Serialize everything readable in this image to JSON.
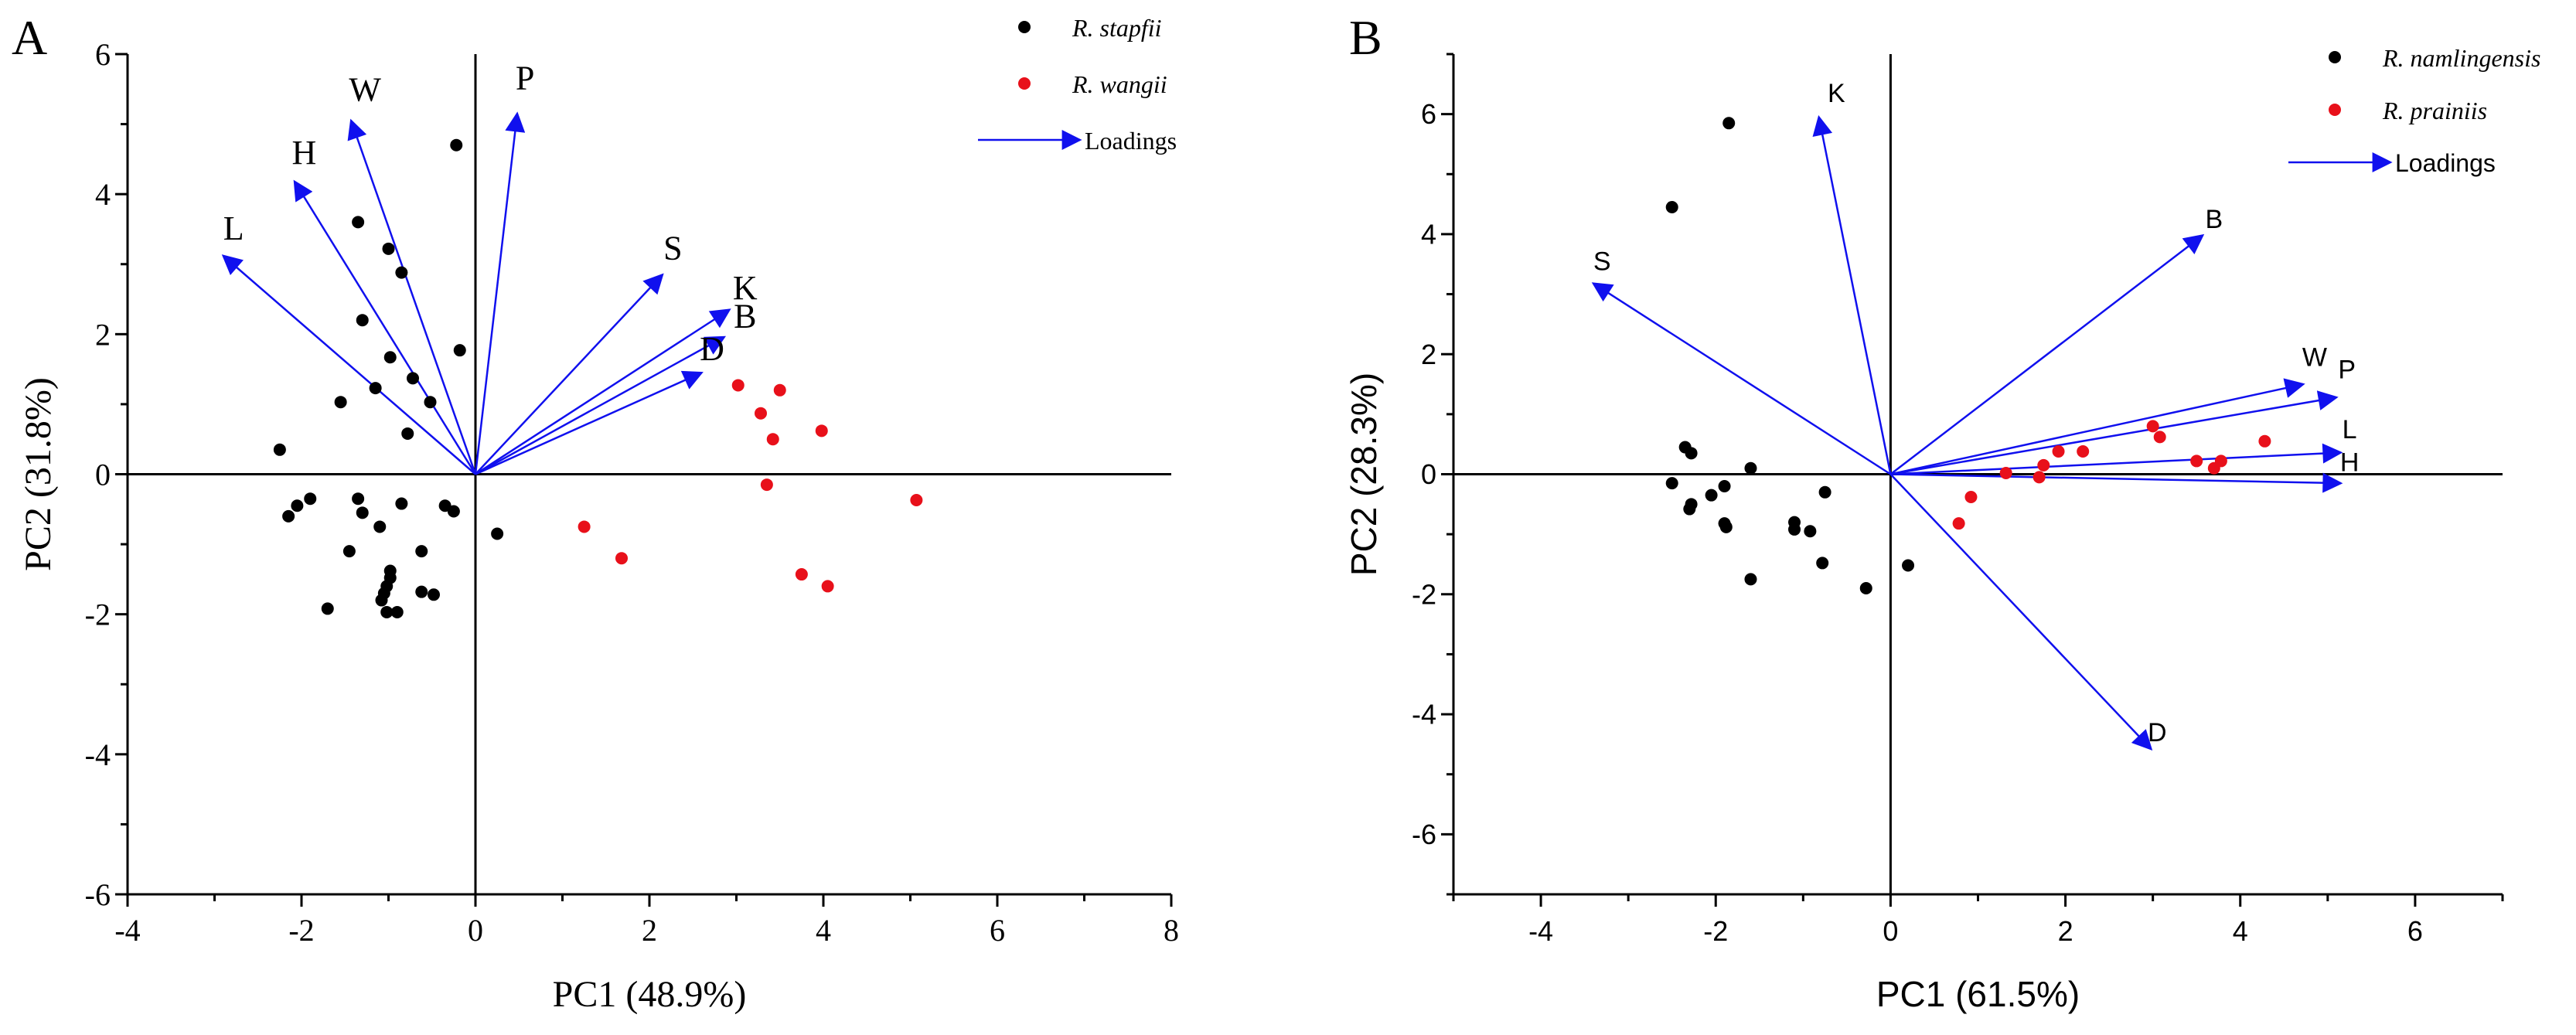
{
  "figure": {
    "background": "#ffffff"
  },
  "chart_data": [
    {
      "panel_label": "A",
      "type": "scatter",
      "font": "serif",
      "xlabel": "PC1 (48.9%)",
      "ylabel": "PC2 (31.8%)",
      "xlim": [
        -4,
        8
      ],
      "ylim": [
        -6,
        6
      ],
      "xticks": [
        -4,
        -2,
        0,
        2,
        4,
        6,
        8
      ],
      "yticks": [
        -6,
        -4,
        -2,
        0,
        2,
        4,
        6
      ],
      "legend": {
        "position": "top-right",
        "entries": [
          {
            "label": "R. stapfii",
            "kind": "point",
            "color": "#000000"
          },
          {
            "label": "R. wangii",
            "kind": "point",
            "color": "#e8101a"
          },
          {
            "label": "Loadings",
            "kind": "arrow",
            "color": "#1010ee"
          }
        ]
      },
      "series": [
        {
          "name": "R. stapfii",
          "color": "#000000",
          "points": [
            [
              -0.22,
              4.7
            ],
            [
              -1.35,
              3.6
            ],
            [
              -1.0,
              3.22
            ],
            [
              -0.85,
              2.88
            ],
            [
              -1.3,
              2.2
            ],
            [
              -0.18,
              1.77
            ],
            [
              -0.98,
              1.67
            ],
            [
              -0.72,
              1.37
            ],
            [
              -1.15,
              1.23
            ],
            [
              -1.55,
              1.03
            ],
            [
              -0.52,
              1.03
            ],
            [
              -0.78,
              0.58
            ],
            [
              -2.25,
              0.35
            ],
            [
              -1.9,
              -0.35
            ],
            [
              -2.05,
              -0.45
            ],
            [
              -2.15,
              -0.6
            ],
            [
              -1.35,
              -0.35
            ],
            [
              -1.3,
              -0.55
            ],
            [
              -0.85,
              -0.42
            ],
            [
              -1.1,
              -0.75
            ],
            [
              -0.35,
              -0.45
            ],
            [
              -0.25,
              -0.53
            ],
            [
              0.25,
              -0.85
            ],
            [
              -1.45,
              -1.1
            ],
            [
              -0.62,
              -1.1
            ],
            [
              -0.98,
              -1.38
            ],
            [
              -0.98,
              -1.48
            ],
            [
              -1.02,
              -1.6
            ],
            [
              -1.05,
              -1.7
            ],
            [
              -0.62,
              -1.68
            ],
            [
              -0.48,
              -1.72
            ],
            [
              -1.08,
              -1.8
            ],
            [
              -1.7,
              -1.92
            ],
            [
              -1.02,
              -1.97
            ],
            [
              -0.9,
              -1.97
            ]
          ]
        },
        {
          "name": "R. wangii",
          "color": "#e8101a",
          "points": [
            [
              3.02,
              1.27
            ],
            [
              3.28,
              0.87
            ],
            [
              3.5,
              1.2
            ],
            [
              3.42,
              0.5
            ],
            [
              3.98,
              0.62
            ],
            [
              3.35,
              -0.15
            ],
            [
              5.07,
              -0.37
            ],
            [
              1.25,
              -0.75
            ],
            [
              1.68,
              -1.2
            ],
            [
              3.75,
              -1.43
            ],
            [
              4.05,
              -1.6
            ]
          ]
        }
      ],
      "loadings": [
        {
          "label": "P",
          "x": 0.48,
          "y": 5.15,
          "lx": 0.57,
          "ly": 5.5
        },
        {
          "label": "W",
          "x": -1.43,
          "y": 5.05,
          "lx": -1.27,
          "ly": 5.33
        },
        {
          "label": "H",
          "x": -2.08,
          "y": 4.18,
          "lx": -1.97,
          "ly": 4.43
        },
        {
          "label": "L",
          "x": -2.9,
          "y": 3.12,
          "lx": -2.78,
          "ly": 3.35
        },
        {
          "label": "S",
          "x": 2.15,
          "y": 2.85,
          "lx": 2.27,
          "ly": 3.07
        },
        {
          "label": "K",
          "x": 2.92,
          "y": 2.35,
          "lx": 3.1,
          "ly": 2.5
        },
        {
          "label": "B",
          "x": 2.86,
          "y": 1.96,
          "lx": 3.1,
          "ly": 2.1
        },
        {
          "label": "D",
          "x": 2.6,
          "y": 1.45,
          "lx": 2.72,
          "ly": 1.63
        }
      ]
    },
    {
      "panel_label": "B",
      "type": "scatter",
      "font": "sans",
      "xlabel": "PC1 (61.5%)",
      "ylabel": "PC2 (28.3%)",
      "xlim": [
        -5,
        7
      ],
      "ylim": [
        -7,
        7
      ],
      "xticks": [
        -4,
        -2,
        0,
        2,
        4,
        6
      ],
      "yticks": [
        -6,
        -4,
        -2,
        0,
        2,
        4,
        6
      ],
      "legend": {
        "position": "top-right",
        "entries": [
          {
            "label": "R. namlingensis",
            "kind": "point",
            "color": "#000000"
          },
          {
            "label": "R. prainiis",
            "kind": "point",
            "color": "#e8101a"
          },
          {
            "label": "Loadings",
            "kind": "arrow",
            "color": "#1010ee"
          }
        ]
      },
      "series": [
        {
          "name": "R. namlingensis",
          "color": "#000000",
          "points": [
            [
              -1.85,
              5.85
            ],
            [
              -2.5,
              4.45
            ],
            [
              -2.35,
              0.45
            ],
            [
              -2.28,
              0.35
            ],
            [
              -1.6,
              0.1
            ],
            [
              -2.5,
              -0.15
            ],
            [
              -2.05,
              -0.35
            ],
            [
              -1.9,
              -0.2
            ],
            [
              -2.28,
              -0.5
            ],
            [
              -2.3,
              -0.58
            ],
            [
              -0.75,
              -0.3
            ],
            [
              -1.9,
              -0.82
            ],
            [
              -1.88,
              -0.88
            ],
            [
              -1.1,
              -0.8
            ],
            [
              -1.1,
              -0.92
            ],
            [
              -0.92,
              -0.95
            ],
            [
              -0.78,
              -1.48
            ],
            [
              0.2,
              -1.52
            ],
            [
              -1.6,
              -1.75
            ],
            [
              -0.28,
              -1.9
            ]
          ]
        },
        {
          "name": "R. prainiis",
          "color": "#e8101a",
          "points": [
            [
              3.0,
              0.8
            ],
            [
              3.08,
              0.62
            ],
            [
              1.92,
              0.38
            ],
            [
              2.2,
              0.38
            ],
            [
              4.28,
              0.55
            ],
            [
              3.5,
              0.22
            ],
            [
              3.78,
              0.22
            ],
            [
              3.7,
              0.1
            ],
            [
              1.75,
              0.15
            ],
            [
              1.7,
              -0.05
            ],
            [
              1.32,
              0.02
            ],
            [
              0.92,
              -0.38
            ],
            [
              0.78,
              -0.82
            ]
          ]
        }
      ],
      "loadings": [
        {
          "label": "K",
          "x": -0.82,
          "y": 5.95,
          "lx": -0.62,
          "ly": 6.2
        },
        {
          "label": "B",
          "x": 3.57,
          "y": 3.98,
          "lx": 3.7,
          "ly": 4.1
        },
        {
          "label": "S",
          "x": -3.4,
          "y": 3.18,
          "lx": -3.3,
          "ly": 3.4
        },
        {
          "label": "W",
          "x": 4.72,
          "y": 1.5,
          "lx": 4.85,
          "ly": 1.8
        },
        {
          "label": "P",
          "x": 5.1,
          "y": 1.28,
          "lx": 5.22,
          "ly": 1.6
        },
        {
          "label": "L",
          "x": 5.15,
          "y": 0.36,
          "lx": 5.25,
          "ly": 0.6
        },
        {
          "label": "H",
          "x": 5.15,
          "y": -0.15,
          "lx": 5.25,
          "ly": 0.05
        },
        {
          "label": "D",
          "x": 2.98,
          "y": -4.58,
          "lx": 3.05,
          "ly": -4.45
        }
      ]
    }
  ],
  "colors": {
    "axis": "#000000",
    "loading": "#1010ee"
  }
}
